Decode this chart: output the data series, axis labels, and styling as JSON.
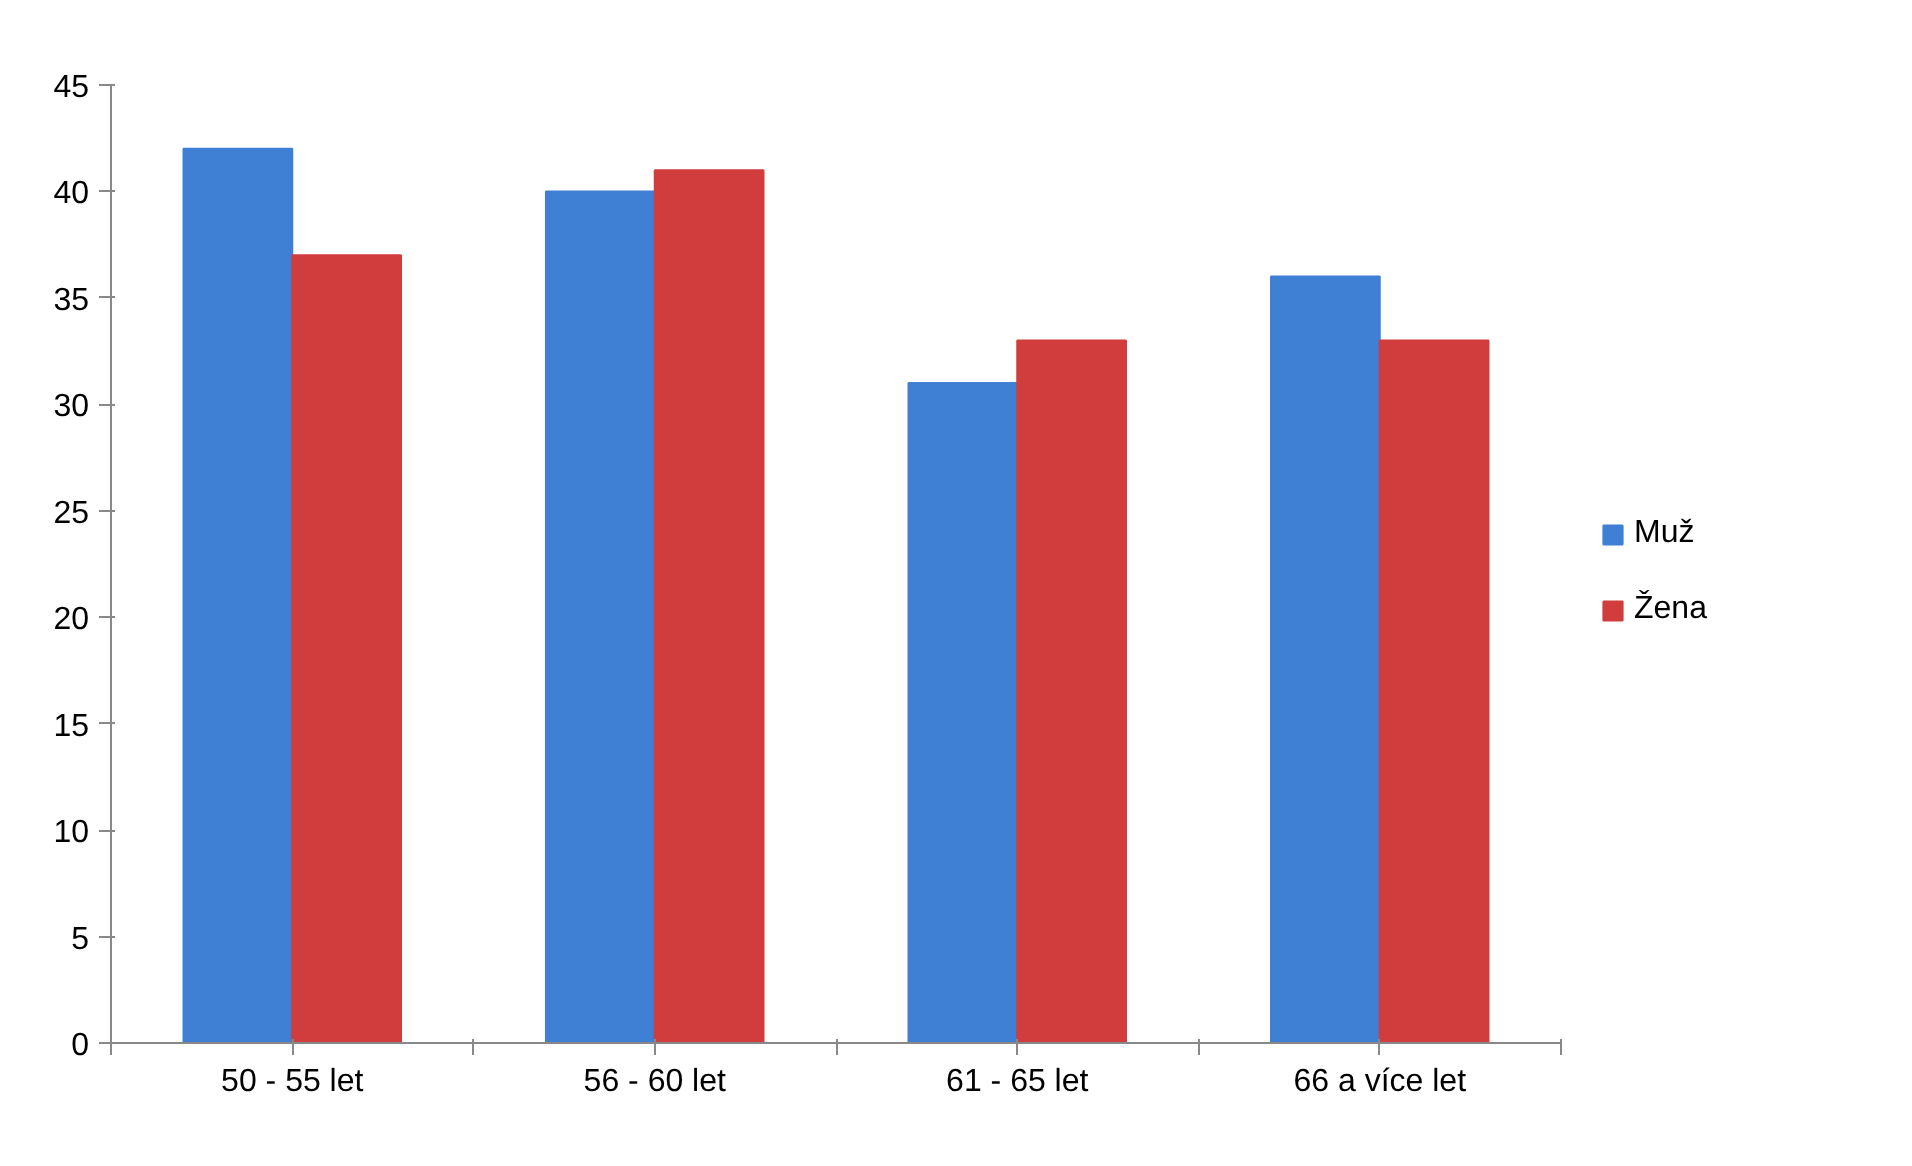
{
  "chart_data": {
    "type": "bar",
    "categories": [
      "50 - 55 let",
      "56 - 60 let",
      "61 - 65 let",
      "66 a více let"
    ],
    "series": [
      {
        "name": "Muž",
        "color": "#3f7fd4",
        "values": [
          42,
          40,
          31,
          36
        ]
      },
      {
        "name": "Žena",
        "color": "#d13c3c",
        "values": [
          37,
          41,
          33,
          33
        ]
      }
    ],
    "ylim": [
      0,
      45
    ],
    "yticks": [
      0,
      5,
      10,
      15,
      20,
      25,
      30,
      35,
      40,
      45
    ],
    "grid": false,
    "legend": "right"
  }
}
